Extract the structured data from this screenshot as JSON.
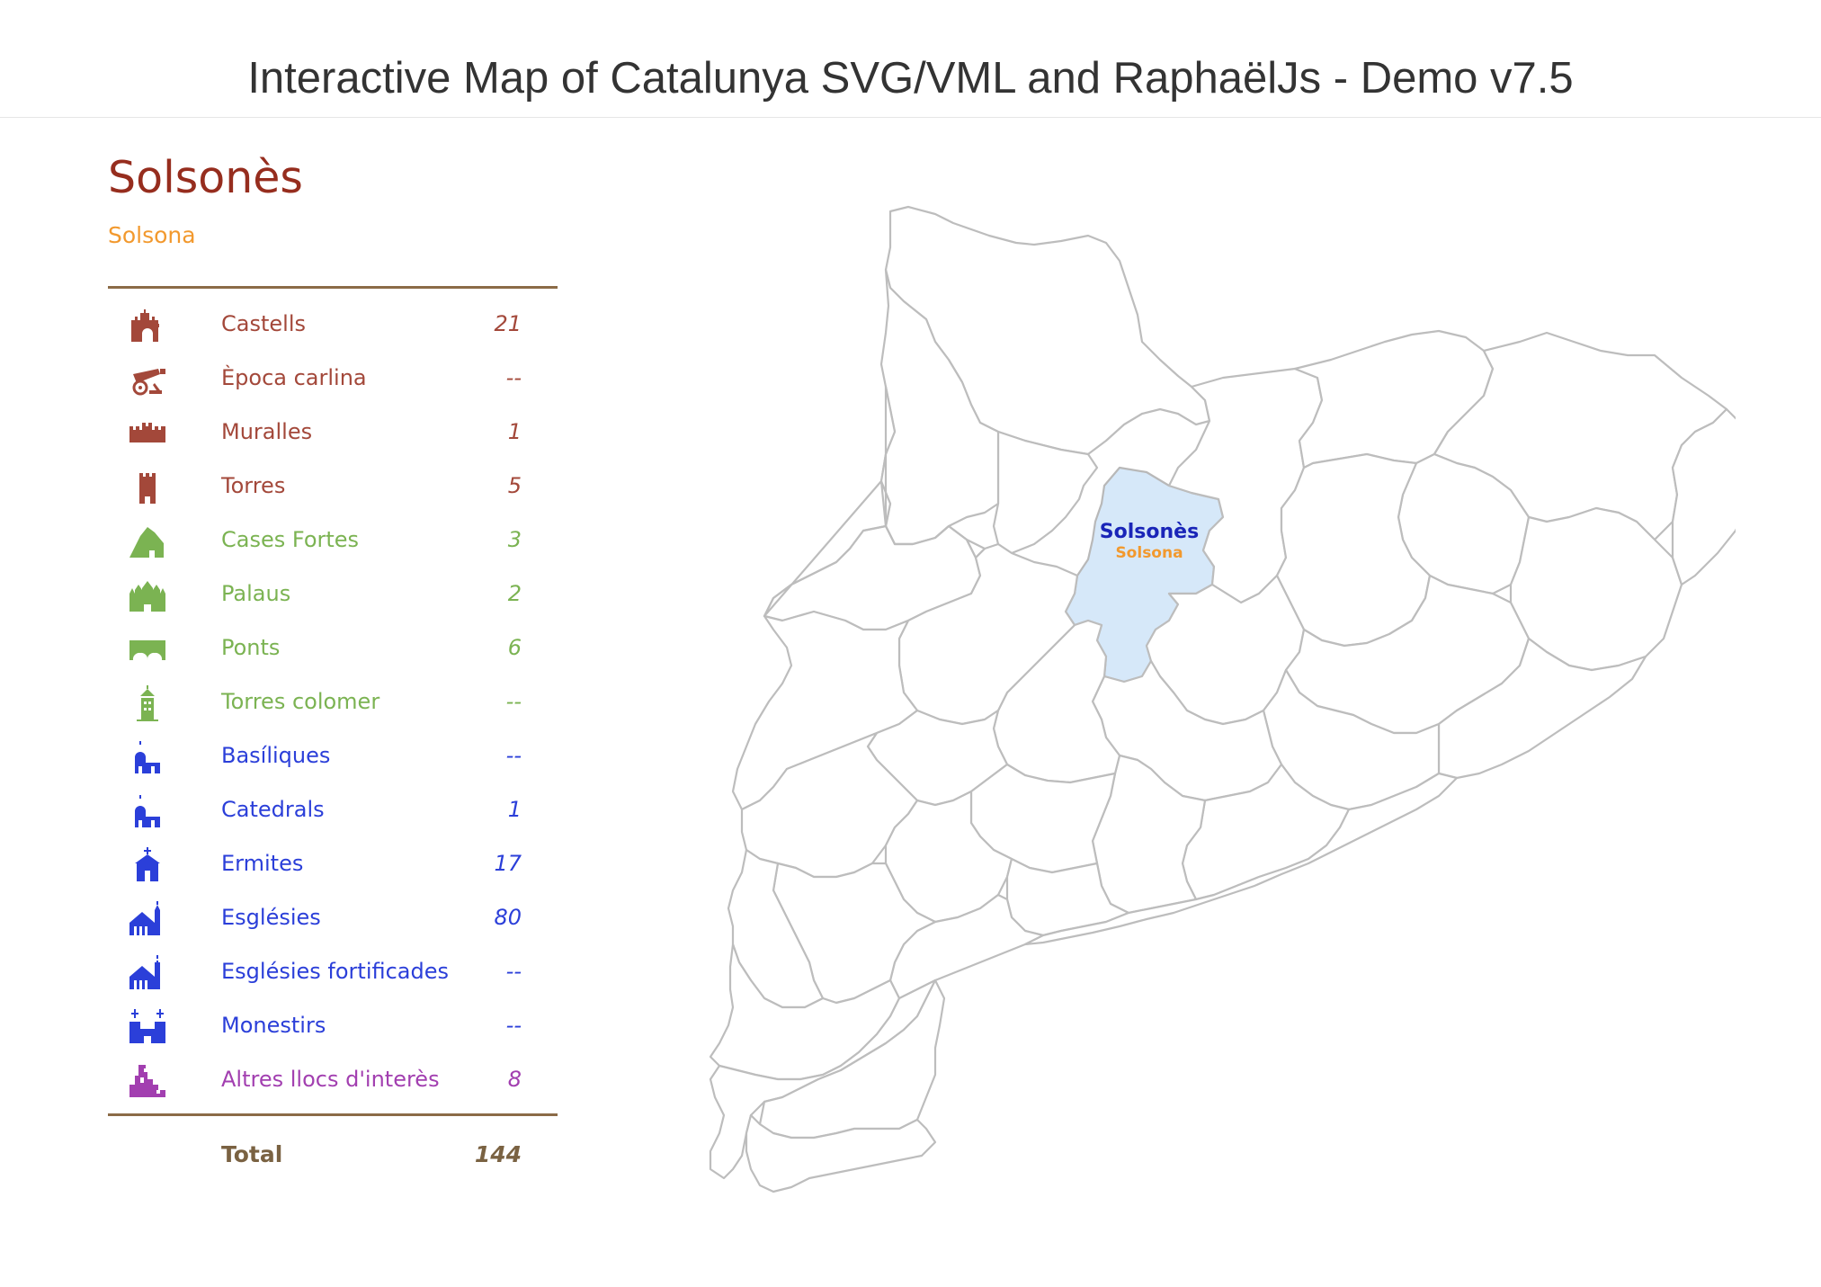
{
  "header": {
    "title": "Interactive Map of Catalunya SVG/VML and RaphaëlJs - Demo v7.5"
  },
  "panel": {
    "region": "Solsonès",
    "capital": "Solsona",
    "rows": [
      {
        "label": "Castells",
        "count": "21",
        "color": "#a3483a",
        "icon": "castle-icon"
      },
      {
        "label": "Època carlina",
        "count": "--",
        "color": "#a3483a",
        "icon": "cannon-icon"
      },
      {
        "label": "Muralles",
        "count": "1",
        "color": "#a3483a",
        "icon": "wall-icon"
      },
      {
        "label": "Torres",
        "count": "5",
        "color": "#a3483a",
        "icon": "tower-icon"
      },
      {
        "label": "Cases Fortes",
        "count": "3",
        "color": "#7bb352",
        "icon": "fortified-house-icon"
      },
      {
        "label": "Palaus",
        "count": "2",
        "color": "#7bb352",
        "icon": "palace-icon"
      },
      {
        "label": "Ponts",
        "count": "6",
        "color": "#7bb352",
        "icon": "bridge-icon"
      },
      {
        "label": "Torres colomer",
        "count": "--",
        "color": "#7bb352",
        "icon": "dovecote-icon"
      },
      {
        "label": "Basíliques",
        "count": "--",
        "color": "#2b3fd9",
        "icon": "basilica-icon"
      },
      {
        "label": "Catedrals",
        "count": "1",
        "color": "#2b3fd9",
        "icon": "cathedral-icon"
      },
      {
        "label": "Ermites",
        "count": "17",
        "color": "#2b3fd9",
        "icon": "hermitage-icon"
      },
      {
        "label": "Esglésies",
        "count": "80",
        "color": "#2b3fd9",
        "icon": "church-icon"
      },
      {
        "label": "Esglésies fortificades",
        "count": "--",
        "color": "#2b3fd9",
        "icon": "fortified-church-icon"
      },
      {
        "label": "Monestirs",
        "count": "--",
        "color": "#2b3fd9",
        "icon": "monastery-icon"
      },
      {
        "label": "Altres llocs d'interès",
        "count": "8",
        "color": "#a23fb0",
        "icon": "other-places-icon"
      }
    ],
    "total_label": "Total",
    "total_count": "144"
  },
  "map": {
    "selected_region": "Solsonès",
    "selected_capital": "Solsona",
    "highlight_color": "#d6e8f9"
  }
}
